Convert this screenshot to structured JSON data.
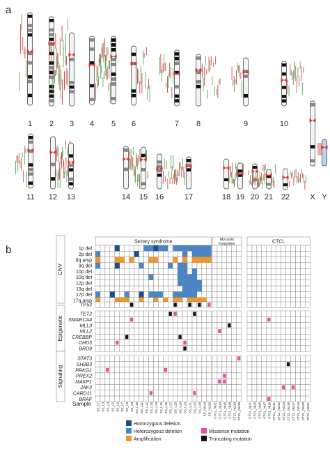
{
  "panels": {
    "a": "a",
    "b": "b"
  },
  "karyotype": {
    "row1": [
      "1",
      "2",
      "3",
      "4",
      "5",
      "6",
      "7",
      "8",
      "9",
      "10"
    ],
    "row2": [
      "11",
      "12",
      "13",
      "14",
      "15",
      "16",
      "17",
      "18",
      "19",
      "20",
      "21",
      "22",
      "X",
      "Y"
    ]
  },
  "panel_b": {
    "groups": [
      "Sezary syndrome",
      "Mycosis\nfungoides",
      "CTCL"
    ],
    "sections": [
      "CNV",
      "Epigenetic",
      "Signaling"
    ],
    "cnv_rows": [
      "1p del",
      "2p del",
      "8q amp",
      "9q del",
      "10p del",
      "10q del",
      "12p del",
      "13q del",
      "17p del",
      "17q amp"
    ],
    "tp53_row": "TP53",
    "epigenetic_rows": [
      "TET2",
      "SMARCA4",
      "MLL3",
      "MLL2",
      "CREBBP",
      "CHD3",
      "BRD9"
    ],
    "signaling_rows": [
      "STAT3",
      "SH2B3",
      "PRKG1",
      "PREX2",
      "MAKP1",
      "JAK3",
      "CARD11",
      "BRAF"
    ],
    "sample_label": "Sample",
    "samples": {
      "ss": [
        "SS_L2",
        "SS_L3",
        "SS_L4",
        "SS_L5",
        "SS_L6",
        "SS_L7",
        "SS_L8",
        "SS_L9",
        "SS_L10",
        "SS_L11",
        "SS_L12",
        "SS_L13",
        "SS_L14",
        "SS_L15",
        "SS_L16",
        "SS_L17",
        "SS_L18",
        "SS_L19",
        "SS_L20",
        "SS_L21",
        "SS_L22",
        "SS_L23",
        "SS_NU14",
        "SS_NU15"
      ],
      "mf": [
        "CTCL_NU2",
        "CTCL_NU4",
        "CTCL_NU6",
        "CTCL_NU8",
        "CTCL_NU10",
        "CTCL_NU18"
      ],
      "ctcl": [
        "CTCL_NU1",
        "CTCL_NU3",
        "CTCL_NU5",
        "CTCL_NU7",
        "CTCL_NU9",
        "CTCL_NU11",
        "CTCL_NU12",
        "CTCL_NU13",
        "CTCL_NU16",
        "CTCL_NU17",
        "CTCL_NU19",
        "CTCL_NU20",
        "CTCL_NU21"
      ]
    },
    "legend": [
      {
        "label": "Homozygous deletion",
        "color": "#1f4e8c"
      },
      {
        "label": "Heterozygous deletion",
        "color": "#4a86c5"
      },
      {
        "label": "Amplification",
        "color": "#f0962e"
      },
      {
        "label": "Missense mutation",
        "color": "#e94ea0"
      },
      {
        "label": "Truncating mutation",
        "color": "#111111"
      }
    ]
  }
}
